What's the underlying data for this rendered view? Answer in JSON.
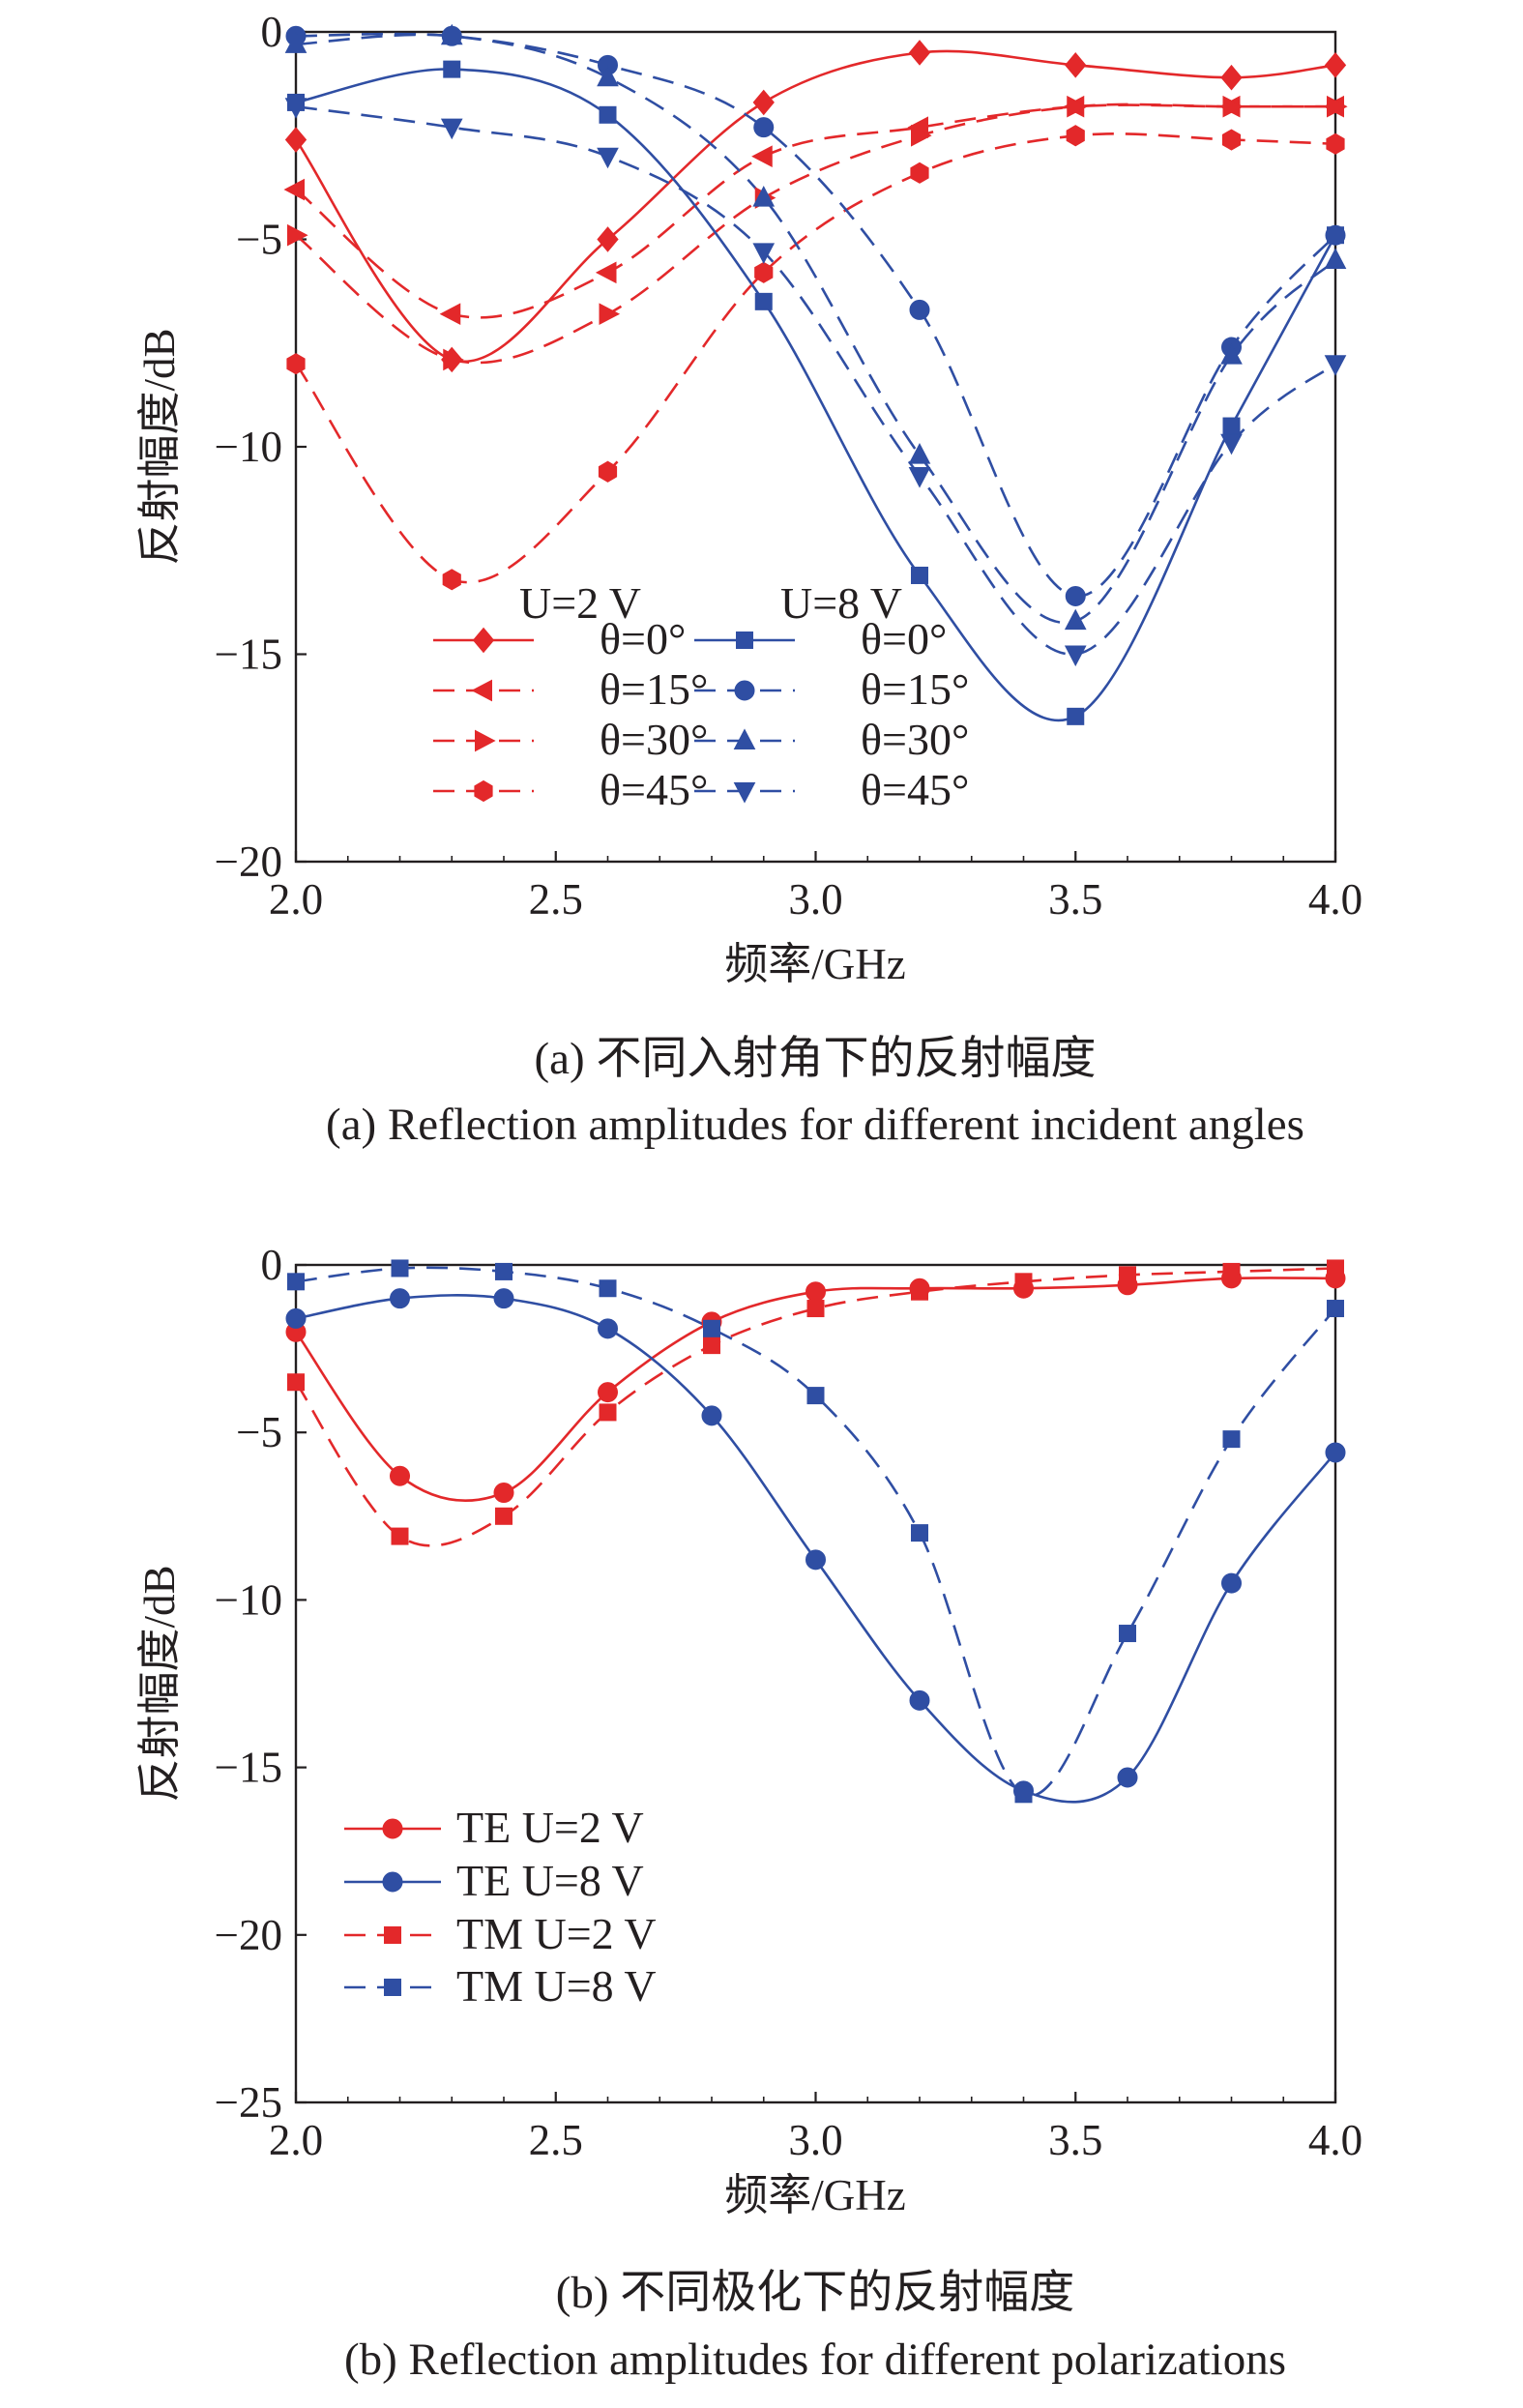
{
  "colors": {
    "red": "#e3282a",
    "blue": "#2f4ea3",
    "axis": "#231f20"
  },
  "chart_data": [
    {
      "type": "line",
      "caption_cn": "(a) 不同入射角下的反射幅度",
      "caption_en": "(a) Reflection amplitudes for different incident angles",
      "xlabel": "频率/GHz",
      "ylabel": "反射幅度/dB",
      "xlim": [
        2.0,
        4.0
      ],
      "ylim": [
        -20,
        0
      ],
      "xticks": [
        "2.0",
        "2.5",
        "3.0",
        "3.5",
        "4.0"
      ],
      "yticks": [
        "0",
        "−5",
        "−10",
        "−15",
        "−20"
      ],
      "grid": false,
      "legend_position": "bottom-center",
      "legend_headers": [
        "U=2 V",
        "U=8 V"
      ],
      "x": [
        2.0,
        2.3,
        2.6,
        2.9,
        3.2,
        3.5,
        3.8,
        4.0
      ],
      "series": [
        {
          "name": "θ=0°",
          "group": "U=2 V",
          "color": "red",
          "dash": false,
          "marker": "diamond",
          "values": [
            -2.6,
            -7.9,
            -5.0,
            -1.7,
            -0.5,
            -0.8,
            -1.1,
            -0.8
          ]
        },
        {
          "name": "θ=15°",
          "group": "U=2 V",
          "color": "red",
          "dash": true,
          "marker": "triangle-left",
          "values": [
            -3.8,
            -6.8,
            -5.8,
            -3.0,
            -2.3,
            -1.8,
            -1.8,
            -1.8
          ]
        },
        {
          "name": "θ=30°",
          "group": "U=2 V",
          "color": "red",
          "dash": true,
          "marker": "triangle-right",
          "values": [
            -4.9,
            -7.9,
            -6.8,
            -4.0,
            -2.5,
            -1.8,
            -1.8,
            -1.8
          ]
        },
        {
          "name": "θ=45°",
          "group": "U=2 V",
          "color": "red",
          "dash": true,
          "marker": "hexagon",
          "values": [
            -8.0,
            -13.2,
            -10.6,
            -5.8,
            -3.4,
            -2.5,
            -2.6,
            -2.7
          ]
        },
        {
          "name": "θ=0°",
          "group": "U=8 V",
          "color": "blue",
          "dash": false,
          "marker": "square",
          "values": [
            -1.7,
            -0.9,
            -2.0,
            -6.5,
            -13.1,
            -16.5,
            -9.5,
            -4.9
          ]
        },
        {
          "name": "θ=15°",
          "group": "U=8 V",
          "color": "blue",
          "dash": true,
          "marker": "circle",
          "values": [
            -0.1,
            -0.1,
            -0.8,
            -2.3,
            -6.7,
            -13.6,
            -7.6,
            -4.9
          ]
        },
        {
          "name": "θ=30°",
          "group": "U=8 V",
          "color": "blue",
          "dash": true,
          "marker": "triangle-up",
          "values": [
            -0.3,
            -0.1,
            -1.1,
            -4.0,
            -10.2,
            -14.2,
            -7.8,
            -5.5
          ]
        },
        {
          "name": "θ=45°",
          "group": "U=8 V",
          "color": "blue",
          "dash": true,
          "marker": "triangle-down",
          "values": [
            -1.8,
            -2.3,
            -3.0,
            -5.3,
            -10.7,
            -15.0,
            -9.9,
            -8.0
          ]
        }
      ]
    },
    {
      "type": "line",
      "caption_cn": "(b) 不同极化下的反射幅度",
      "caption_en": "(b) Reflection amplitudes for different polarizations",
      "xlabel": "频率/GHz",
      "ylabel": "反射幅度/dB",
      "xlim": [
        2.0,
        4.0
      ],
      "ylim": [
        -25,
        0
      ],
      "xticks": [
        "2.0",
        "2.5",
        "3.0",
        "3.5",
        "4.0"
      ],
      "yticks": [
        "0",
        "−5",
        "−10",
        "−15",
        "−20",
        "−25"
      ],
      "grid": false,
      "legend_position": "bottom-left",
      "x": [
        2.0,
        2.2,
        2.4,
        2.6,
        2.8,
        3.0,
        3.2,
        3.4,
        3.6,
        3.8,
        4.0
      ],
      "series": [
        {
          "name": "TE U=2 V",
          "color": "red",
          "dash": false,
          "marker": "circle",
          "values": [
            -2.0,
            -6.3,
            -6.8,
            -3.8,
            -1.7,
            -0.8,
            -0.7,
            -0.7,
            -0.6,
            -0.4,
            -0.4
          ]
        },
        {
          "name": "TE U=8 V",
          "color": "blue",
          "dash": false,
          "marker": "circle",
          "values": [
            -1.6,
            -1.0,
            -1.0,
            -1.9,
            -4.5,
            -8.8,
            -13.0,
            -15.7,
            -15.3,
            -9.5,
            -5.6
          ]
        },
        {
          "name": "TM U=2 V",
          "color": "red",
          "dash": true,
          "marker": "square",
          "values": [
            -3.5,
            -8.1,
            -7.5,
            -4.4,
            -2.4,
            -1.3,
            -0.8,
            -0.5,
            -0.3,
            -0.2,
            -0.1
          ]
        },
        {
          "name": "TM U=8 V",
          "color": "blue",
          "dash": true,
          "marker": "square",
          "values": [
            -0.5,
            -0.1,
            -0.2,
            -0.7,
            -1.9,
            -3.9,
            -8.0,
            -15.8,
            -11.0,
            -5.2,
            -1.3
          ]
        }
      ]
    }
  ]
}
